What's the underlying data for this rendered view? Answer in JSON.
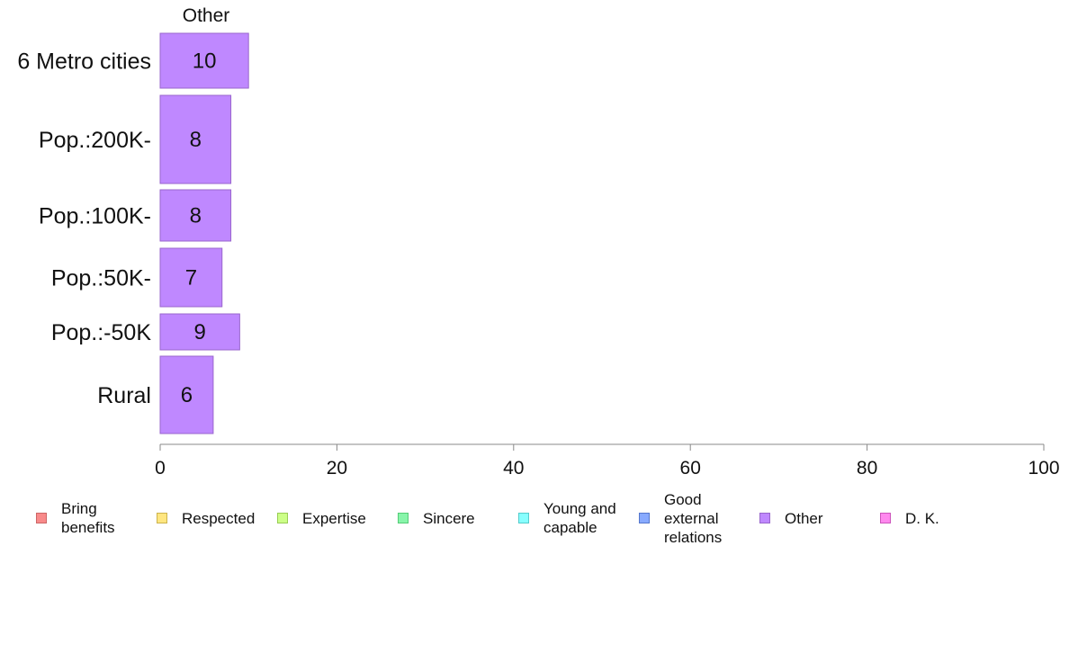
{
  "chart_data": {
    "type": "bar",
    "title": "Other",
    "orientation": "horizontal",
    "categories": [
      "6 Metro cities",
      "Pop.:200K-",
      "Pop.:100K-",
      "Pop.:50K-",
      "Pop.:-50K",
      "Rural"
    ],
    "series": [
      {
        "name": "Other",
        "values": [
          10,
          8,
          8,
          7,
          9,
          6
        ]
      }
    ],
    "data_labels": [
      "10",
      "8",
      "8",
      "7",
      "9",
      "6"
    ],
    "xlim": [
      0,
      100
    ],
    "x_ticks": [
      0,
      20,
      40,
      60,
      80,
      100
    ],
    "x_tick_labels": [
      "0",
      "20",
      "40",
      "60",
      "80",
      "100"
    ],
    "xlabel": "",
    "ylabel": "",
    "grid": false,
    "legend_position": "bottom",
    "bar_color": "#bf88ff",
    "bar_border_color": "#9966cc",
    "legend": [
      {
        "label": "Bring\nbenefits",
        "color": "#f88a8a",
        "border": "#cc6666"
      },
      {
        "label": "Respected",
        "color": "#ffe680",
        "border": "#ccb34d"
      },
      {
        "label": "Expertise",
        "color": "#ccff88",
        "border": "#99cc55"
      },
      {
        "label": "Sincere",
        "color": "#88f5aa",
        "border": "#55cc77"
      },
      {
        "label": "Young and\ncapable",
        "color": "#88ffff",
        "border": "#55cccc"
      },
      {
        "label": "Good\nexternal\nrelations",
        "color": "#88aaff",
        "border": "#5577cc"
      },
      {
        "label": "Other",
        "color": "#bf88ff",
        "border": "#9966cc"
      },
      {
        "label": "D. K.",
        "color": "#ff88ee",
        "border": "#cc55bb"
      }
    ]
  }
}
